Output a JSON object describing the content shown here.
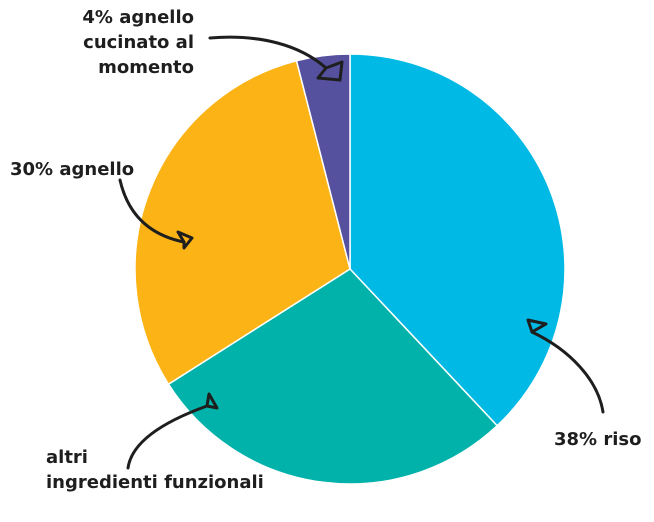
{
  "chart_data": {
    "type": "pie",
    "categories": [
      "38% riso",
      "altri\ningredienti funzionali",
      "30% agnello",
      "4% agnello\ncucinato al\nmomento"
    ],
    "values": [
      38,
      28,
      30,
      4
    ],
    "colors": [
      "#00b9e4",
      "#00b2a9",
      "#fbb316",
      "#56519f"
    ]
  }
}
